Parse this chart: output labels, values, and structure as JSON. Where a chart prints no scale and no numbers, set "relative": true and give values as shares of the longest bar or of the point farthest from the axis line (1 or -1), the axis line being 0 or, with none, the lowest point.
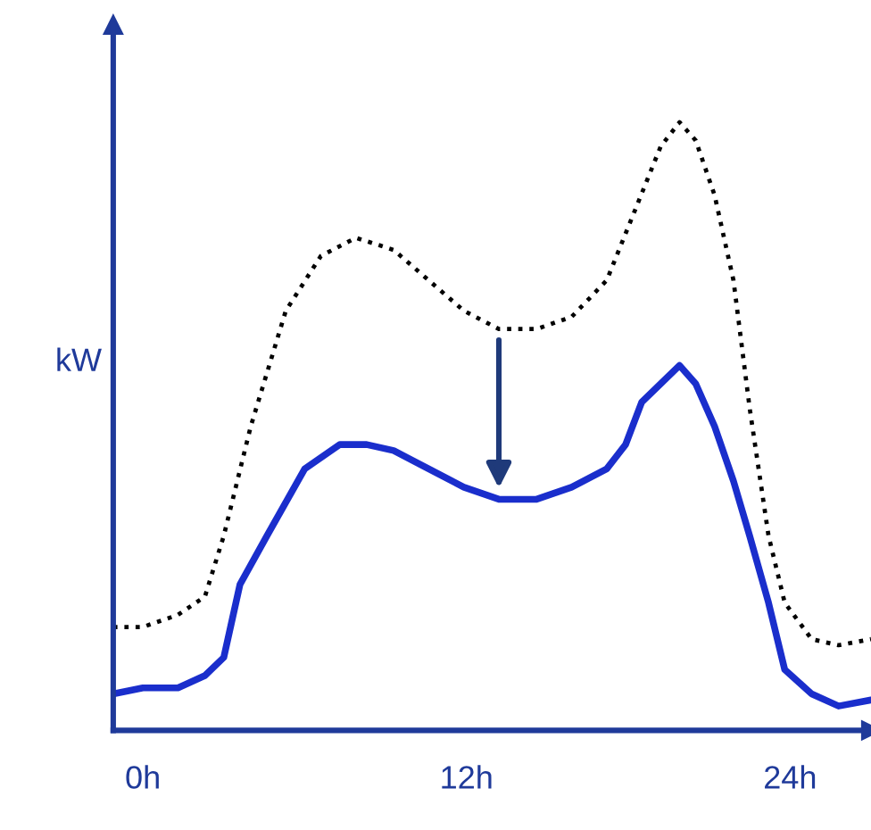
{
  "chart_data": {
    "type": "line",
    "relative": true,
    "ylabel": "kW",
    "xlim": [
      -1.1,
      27
    ],
    "xticks": [
      {
        "value": 0,
        "label": "0h"
      },
      {
        "value": 12,
        "label": "12h"
      },
      {
        "value": 24,
        "label": "24h"
      }
    ],
    "grid": false,
    "marker": "none",
    "series": [
      {
        "color": "#000000",
        "line_style": "dotted",
        "x": [
          -1.1,
          0,
          1.3,
          2.3,
          3,
          4,
          5.3,
          6.6,
          7.9,
          9.3,
          10.6,
          11.9,
          13.2,
          14.6,
          15.9,
          17.2,
          18.2,
          19.2,
          19.9,
          20.5,
          21.2,
          21.9,
          22.5,
          23.2,
          23.8,
          24.8,
          25.8,
          27
        ],
        "values": [
          0.17,
          0.17,
          0.19,
          0.22,
          0.32,
          0.5,
          0.69,
          0.78,
          0.81,
          0.79,
          0.74,
          0.69,
          0.66,
          0.66,
          0.68,
          0.74,
          0.85,
          0.96,
          1.0,
          0.97,
          0.88,
          0.74,
          0.53,
          0.32,
          0.21,
          0.15,
          0.14,
          0.15
        ]
      },
      {
        "color": "#1a2ecc",
        "line_style": "solid",
        "x": [
          -1.1,
          0,
          1.3,
          2.3,
          3,
          3.6,
          4.6,
          6,
          7.3,
          8.3,
          9.3,
          10.6,
          11.9,
          13.2,
          14.6,
          15.9,
          17.2,
          17.9,
          18.5,
          19.2,
          19.9,
          20.5,
          21.2,
          21.9,
          22.5,
          23.2,
          23.8,
          24.8,
          25.8,
          27
        ],
        "values": [
          0.06,
          0.07,
          0.07,
          0.09,
          0.12,
          0.24,
          0.32,
          0.43,
          0.47,
          0.47,
          0.46,
          0.43,
          0.4,
          0.38,
          0.38,
          0.4,
          0.43,
          0.47,
          0.54,
          0.57,
          0.6,
          0.57,
          0.5,
          0.41,
          0.32,
          0.21,
          0.1,
          0.06,
          0.04,
          0.05
        ]
      }
    ]
  }
}
